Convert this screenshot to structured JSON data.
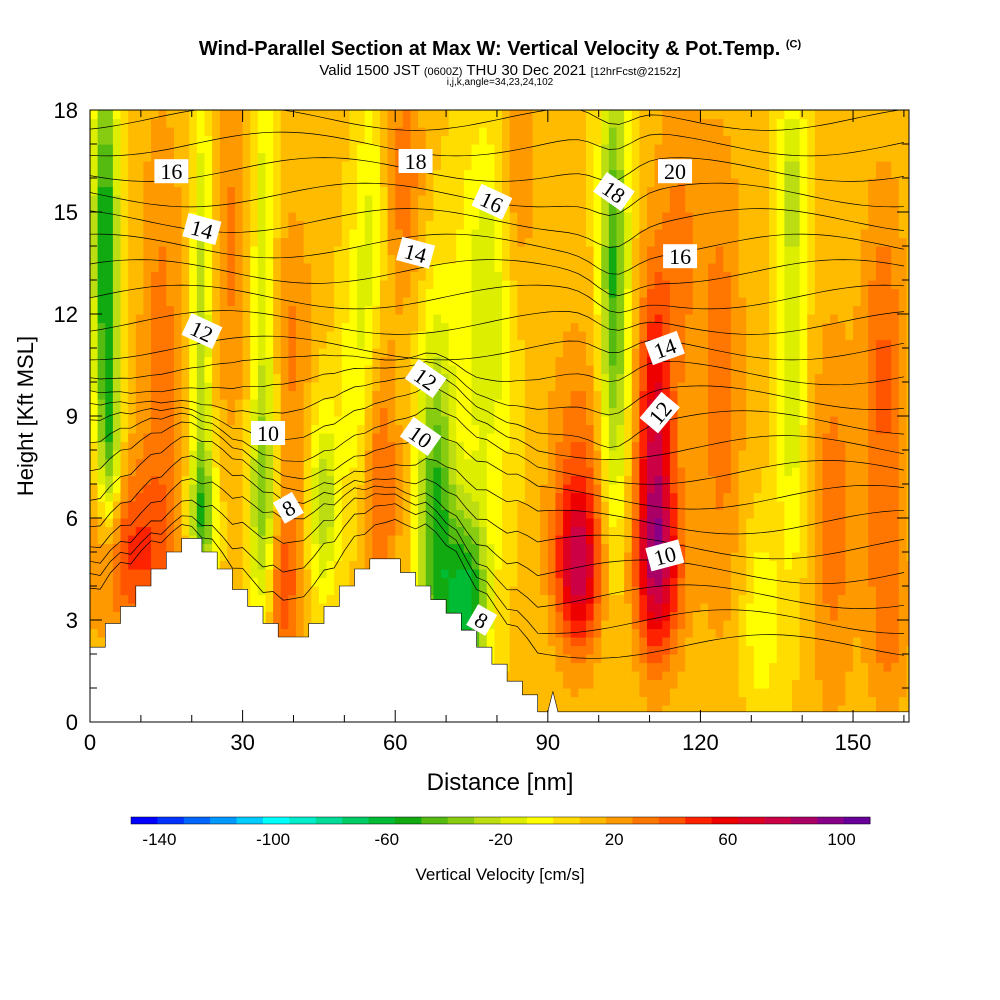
{
  "header": {
    "title_main": "Wind-Parallel Section at Max W: Vertical Velocity & Pot.Temp.",
    "title_copyright": "(C)",
    "valid_prefix": "Valid 1500 JST",
    "valid_zulu": "(0600Z)",
    "valid_date": "THU 30 Dec 2021",
    "forecast_info": "[12hrFcst@2152z]",
    "indices": "i,j,k,angle=34,23,24,102"
  },
  "chart_data": {
    "type": "heatmap",
    "xlabel": "Distance [nm]",
    "ylabel": "Height [Kft MSL]",
    "xlim": [
      0,
      161
    ],
    "ylim": [
      0,
      18
    ],
    "xticks": [
      0,
      30,
      60,
      90,
      120,
      150
    ],
    "yticks": [
      0,
      3,
      6,
      9,
      12,
      15,
      18
    ],
    "colorbar": {
      "label": "Vertical Velocity [cm/s]",
      "tick_labels": [
        "-140",
        "-100",
        "-60",
        "-20",
        "20",
        "60",
        "100"
      ],
      "tick_values": [
        -140,
        -100,
        -60,
        -20,
        20,
        60,
        100
      ],
      "range": [
        -150,
        110
      ],
      "colors": [
        "#0000ff",
        "#0033ff",
        "#0066ff",
        "#0099ff",
        "#00ccff",
        "#00ffff",
        "#00eecc",
        "#00dd99",
        "#00cc66",
        "#00bb33",
        "#11aa11",
        "#55bb11",
        "#88cc11",
        "#bbdd11",
        "#ddee00",
        "#ffff00",
        "#ffdd00",
        "#ffbb00",
        "#ff9900",
        "#ff7700",
        "#ff5500",
        "#ff2200",
        "#ee0000",
        "#dd0022",
        "#cc0044",
        "#aa0066",
        "#880088",
        "#660099"
      ]
    },
    "terrain_profile": [
      [
        0,
        2.2
      ],
      [
        3,
        2.2
      ],
      [
        3,
        2.9
      ],
      [
        6,
        2.9
      ],
      [
        6,
        3.4
      ],
      [
        9,
        3.4
      ],
      [
        9,
        4.0
      ],
      [
        12,
        4.0
      ],
      [
        12,
        4.5
      ],
      [
        15,
        4.5
      ],
      [
        15,
        5.0
      ],
      [
        18,
        5.0
      ],
      [
        18,
        5.4
      ],
      [
        22,
        5.4
      ],
      [
        22,
        5.0
      ],
      [
        25,
        5.0
      ],
      [
        25,
        4.5
      ],
      [
        28,
        4.5
      ],
      [
        28,
        3.9
      ],
      [
        31,
        3.9
      ],
      [
        31,
        3.4
      ],
      [
        34,
        3.4
      ],
      [
        34,
        2.9
      ],
      [
        37,
        2.9
      ],
      [
        37,
        2.5
      ],
      [
        43,
        2.5
      ],
      [
        43,
        2.9
      ],
      [
        46,
        2.9
      ],
      [
        46,
        3.4
      ],
      [
        49,
        3.4
      ],
      [
        49,
        4.0
      ],
      [
        52,
        4.0
      ],
      [
        52,
        4.5
      ],
      [
        55,
        4.5
      ],
      [
        55,
        4.8
      ],
      [
        61,
        4.8
      ],
      [
        61,
        4.4
      ],
      [
        64,
        4.4
      ],
      [
        64,
        4.0
      ],
      [
        67,
        4.0
      ],
      [
        67,
        3.6
      ],
      [
        70,
        3.6
      ],
      [
        70,
        3.2
      ],
      [
        73,
        3.2
      ],
      [
        73,
        2.7
      ],
      [
        76,
        2.7
      ],
      [
        76,
        2.2
      ],
      [
        79,
        2.2
      ],
      [
        79,
        1.7
      ],
      [
        82,
        1.7
      ],
      [
        82,
        1.2
      ],
      [
        85,
        1.2
      ],
      [
        85,
        0.8
      ],
      [
        88,
        0.8
      ],
      [
        88,
        0.3
      ],
      [
        90,
        0.3
      ],
      [
        91,
        0.9
      ],
      [
        92,
        0.3
      ],
      [
        161,
        0.3
      ]
    ],
    "updraft_downdraft_cells": [
      {
        "x": 3,
        "y": 14,
        "sx": 1.8,
        "sy": 4,
        "w": -70
      },
      {
        "x": 4,
        "y": 8,
        "sx": 1.5,
        "sy": 2,
        "w": -40
      },
      {
        "x": 8,
        "y": 5,
        "sx": 6,
        "sy": 1.8,
        "w": 35
      },
      {
        "x": 14,
        "y": 11,
        "sx": 3,
        "sy": 5,
        "w": 20
      },
      {
        "x": 22,
        "y": 12,
        "sx": 1.4,
        "sy": 5,
        "w": -35
      },
      {
        "x": 22,
        "y": 6,
        "sx": 2,
        "sy": 1.5,
        "w": -45
      },
      {
        "x": 28,
        "y": 14,
        "sx": 2.5,
        "sy": 4,
        "w": 18
      },
      {
        "x": 34,
        "y": 6.5,
        "sx": 2,
        "sy": 2.5,
        "w": -45
      },
      {
        "x": 38,
        "y": 4,
        "sx": 2.2,
        "sy": 1.8,
        "w": 35
      },
      {
        "x": 34,
        "y": 14,
        "sx": 1.6,
        "sy": 4,
        "w": -28
      },
      {
        "x": 40,
        "y": 11,
        "sx": 2.5,
        "sy": 3,
        "w": 18
      },
      {
        "x": 46,
        "y": 6.5,
        "sx": 2,
        "sy": 2,
        "w": -38
      },
      {
        "x": 52,
        "y": 10,
        "sx": 2,
        "sy": 3,
        "w": -18
      },
      {
        "x": 57,
        "y": 7,
        "sx": 2.5,
        "sy": 3,
        "w": 28
      },
      {
        "x": 55,
        "y": 14,
        "sx": 2,
        "sy": 3.5,
        "w": -22
      },
      {
        "x": 68,
        "y": 6,
        "sx": 2.5,
        "sy": 4,
        "w": -60
      },
      {
        "x": 74,
        "y": 3.5,
        "sx": 3,
        "sy": 2,
        "w": -70
      },
      {
        "x": 62,
        "y": 16,
        "sx": 2.5,
        "sy": 2.5,
        "w": 22
      },
      {
        "x": 78,
        "y": 12,
        "sx": 4,
        "sy": 4,
        "w": -30
      },
      {
        "x": 84,
        "y": 16,
        "sx": 2.5,
        "sy": 3,
        "w": 18
      },
      {
        "x": 96,
        "y": 4.5,
        "sx": 3,
        "sy": 1.6,
        "w": 55
      },
      {
        "x": 96,
        "y": 7,
        "sx": 4,
        "sy": 3,
        "w": 25
      },
      {
        "x": 103,
        "y": 13,
        "sx": 2,
        "sy": 5,
        "w": -60
      },
      {
        "x": 111,
        "y": 8,
        "sx": 2.4,
        "sy": 3.5,
        "w": 60
      },
      {
        "x": 112,
        "y": 4.5,
        "sx": 3.5,
        "sy": 1.8,
        "w": 45
      },
      {
        "x": 116,
        "y": 14,
        "sx": 3,
        "sy": 4,
        "w": 18
      },
      {
        "x": 124,
        "y": 10,
        "sx": 3,
        "sy": 5,
        "w": 22
      },
      {
        "x": 132,
        "y": 3,
        "sx": 2.5,
        "sy": 2,
        "w": -20
      },
      {
        "x": 138,
        "y": 10,
        "sx": 2,
        "sy": 4,
        "w": -28
      },
      {
        "x": 138,
        "y": 16,
        "sx": 2,
        "sy": 2,
        "w": -25
      },
      {
        "x": 146,
        "y": 6,
        "sx": 3,
        "sy": 4,
        "w": 22
      },
      {
        "x": 156,
        "y": 10,
        "sx": 3,
        "sy": 4,
        "w": 28
      },
      {
        "x": 157,
        "y": 3,
        "sx": 3,
        "sy": 2,
        "w": 18
      }
    ],
    "potential_temperature_labels": [
      {
        "text": "16",
        "x": 16,
        "y": 16.2,
        "angle": 0
      },
      {
        "text": "14",
        "x": 22,
        "y": 14.5,
        "angle": 15
      },
      {
        "text": "12",
        "x": 22,
        "y": 11.5,
        "angle": 25
      },
      {
        "text": "10",
        "x": 35,
        "y": 8.5,
        "angle": 0
      },
      {
        "text": "8",
        "x": 39,
        "y": 6.3,
        "angle": -30
      },
      {
        "text": "18",
        "x": 64,
        "y": 16.5,
        "angle": 0
      },
      {
        "text": "16",
        "x": 79,
        "y": 15.3,
        "angle": 25
      },
      {
        "text": "14",
        "x": 64,
        "y": 13.8,
        "angle": 15
      },
      {
        "text": "12",
        "x": 66,
        "y": 10.1,
        "angle": 35
      },
      {
        "text": "10",
        "x": 65,
        "y": 8.4,
        "angle": 35
      },
      {
        "text": "8",
        "x": 77,
        "y": 3.0,
        "angle": 30
      },
      {
        "text": "18",
        "x": 103,
        "y": 15.6,
        "angle": 35
      },
      {
        "text": "20",
        "x": 115,
        "y": 16.2,
        "angle": 0
      },
      {
        "text": "16",
        "x": 116,
        "y": 13.7,
        "angle": 0
      },
      {
        "text": "14",
        "x": 113,
        "y": 11.0,
        "angle": -20
      },
      {
        "text": "12",
        "x": 112,
        "y": 9.1,
        "angle": -50
      },
      {
        "text": "10",
        "x": 113,
        "y": 4.9,
        "angle": -15
      }
    ]
  }
}
